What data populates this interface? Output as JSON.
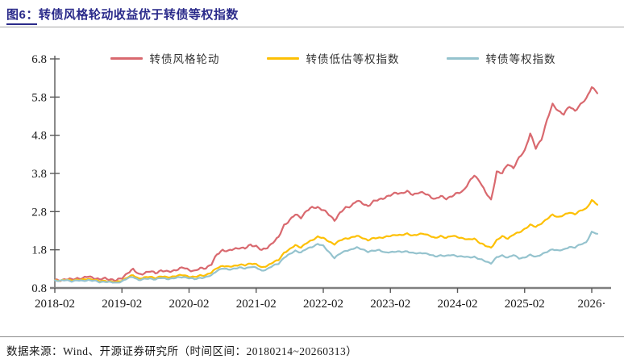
{
  "figure": {
    "title": "图6：转债风格轮动收益优于转债等权指数",
    "source_note": "数据来源：Wind、开源证券研究所（时间区间：20180214~20260313）"
  },
  "colors": {
    "title_navy": "#2a2a8a",
    "axis_line": "#595959",
    "bottom_axis": "#7f7f7f",
    "divider": "#a6a6a6",
    "text": "#1a1a1a"
  },
  "chart_data": {
    "type": "line",
    "title": "转债风格轮动收益优于转债等权指数",
    "x_unit": "monthly samples, 2018-02 through 2026-03",
    "x_tick_labels": [
      "2018-02",
      "2019-02",
      "2020-02",
      "2021-02",
      "2022-02",
      "2023-02",
      "2024-02",
      "2025-02",
      "2026·"
    ],
    "y_tick_labels": [
      "0.8",
      "1.8",
      "2.8",
      "3.8",
      "4.8",
      "5.8",
      "6.8"
    ],
    "ylim": [
      0.8,
      6.8
    ],
    "grid": false,
    "legend_position": "top",
    "series": [
      {
        "name": "转债风格轮动",
        "color": "#d9696f",
        "values": [
          1.0,
          1.01,
          1.03,
          1.02,
          1.06,
          1.05,
          1.1,
          1.07,
          1.02,
          1.05,
          1.03,
          0.99,
          1.06,
          1.2,
          1.28,
          1.16,
          1.19,
          1.23,
          1.2,
          1.26,
          1.22,
          1.25,
          1.29,
          1.33,
          1.28,
          1.24,
          1.31,
          1.33,
          1.42,
          1.68,
          1.8,
          1.76,
          1.82,
          1.86,
          1.83,
          1.93,
          1.9,
          1.78,
          1.86,
          2.0,
          2.12,
          2.45,
          2.58,
          2.72,
          2.65,
          2.82,
          2.9,
          2.92,
          2.84,
          2.72,
          2.58,
          2.76,
          2.9,
          2.96,
          3.08,
          3.02,
          2.95,
          3.06,
          3.12,
          3.17,
          3.22,
          3.3,
          3.28,
          3.32,
          3.25,
          3.3,
          3.28,
          3.22,
          3.12,
          3.2,
          3.15,
          3.2,
          3.28,
          3.35,
          3.55,
          3.75,
          3.6,
          3.3,
          3.1,
          3.85,
          3.8,
          4.05,
          3.95,
          4.2,
          4.4,
          4.85,
          4.45,
          4.7,
          5.2,
          5.6,
          5.45,
          5.35,
          5.55,
          5.45,
          5.6,
          5.75,
          6.08,
          5.9
        ]
      },
      {
        "name": "转债低估等权指数",
        "color": "#fdc005",
        "values": [
          1.0,
          1.0,
          1.01,
          1.0,
          1.02,
          1.01,
          1.04,
          1.02,
          0.97,
          0.99,
          0.97,
          0.95,
          1.0,
          1.08,
          1.13,
          1.05,
          1.07,
          1.09,
          1.07,
          1.1,
          1.08,
          1.1,
          1.12,
          1.14,
          1.1,
          1.08,
          1.13,
          1.14,
          1.2,
          1.33,
          1.38,
          1.35,
          1.38,
          1.41,
          1.39,
          1.45,
          1.42,
          1.33,
          1.39,
          1.47,
          1.53,
          1.73,
          1.81,
          1.92,
          1.87,
          1.97,
          2.05,
          2.15,
          2.1,
          2.02,
          1.95,
          2.04,
          2.1,
          2.12,
          2.16,
          2.12,
          2.05,
          2.1,
          2.12,
          2.13,
          2.16,
          2.2,
          2.18,
          2.22,
          2.18,
          2.2,
          2.22,
          2.18,
          2.1,
          2.16,
          2.12,
          2.16,
          2.14,
          2.1,
          2.06,
          2.1,
          1.98,
          1.9,
          1.86,
          2.05,
          2.15,
          2.1,
          2.2,
          2.25,
          2.35,
          2.45,
          2.4,
          2.5,
          2.6,
          2.72,
          2.66,
          2.7,
          2.78,
          2.74,
          2.82,
          2.88,
          3.1,
          2.98
        ]
      },
      {
        "name": "转债等权指数",
        "color": "#95c3ce",
        "values": [
          1.0,
          0.99,
          1.0,
          0.98,
          1.0,
          0.98,
          1.01,
          0.99,
          0.95,
          0.97,
          0.95,
          0.93,
          0.98,
          1.05,
          1.09,
          1.01,
          1.03,
          1.05,
          1.03,
          1.06,
          1.04,
          1.05,
          1.07,
          1.09,
          1.06,
          1.03,
          1.07,
          1.08,
          1.13,
          1.26,
          1.31,
          1.28,
          1.31,
          1.33,
          1.31,
          1.36,
          1.33,
          1.25,
          1.3,
          1.38,
          1.44,
          1.6,
          1.68,
          1.78,
          1.73,
          1.82,
          1.88,
          1.95,
          1.9,
          1.75,
          1.58,
          1.7,
          1.78,
          1.8,
          1.86,
          1.82,
          1.74,
          1.78,
          1.8,
          1.72,
          1.74,
          1.76,
          1.74,
          1.76,
          1.72,
          1.7,
          1.72,
          1.68,
          1.62,
          1.66,
          1.64,
          1.66,
          1.64,
          1.62,
          1.6,
          1.62,
          1.55,
          1.5,
          1.45,
          1.6,
          1.65,
          1.6,
          1.66,
          1.58,
          1.6,
          1.66,
          1.62,
          1.68,
          1.74,
          1.82,
          1.78,
          1.8,
          1.88,
          1.86,
          1.94,
          2.0,
          2.26,
          2.22
        ]
      }
    ]
  }
}
